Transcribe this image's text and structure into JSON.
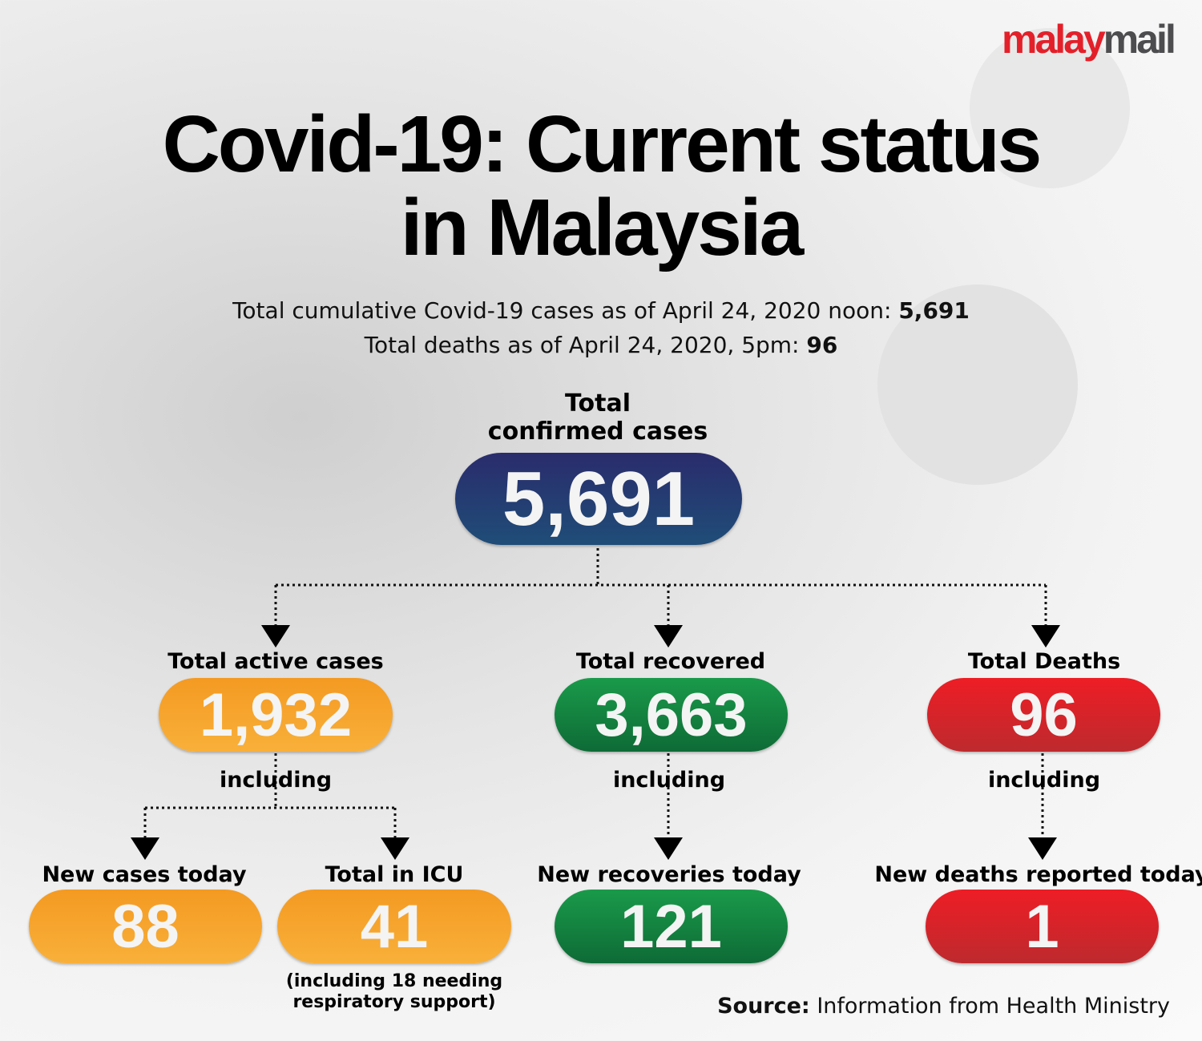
{
  "logo": {
    "part1": "malay",
    "part2": "mail"
  },
  "title": {
    "line1": "Covid-19: Current status",
    "line2": "in Malaysia"
  },
  "summary": {
    "cases_text": "Total cumulative Covid-19 cases as of April 24, 2020 noon: ",
    "cases_value": "5,691",
    "deaths_text": "Total deaths as of April 24, 2020, 5pm: ",
    "deaths_value": "96"
  },
  "total": {
    "label_line1": "Total",
    "label_line2": "confirmed cases",
    "value": "5,691"
  },
  "active": {
    "label": "Total active cases",
    "value": "1,932",
    "including": "including"
  },
  "recovered": {
    "label": "Total recovered",
    "value": "3,663",
    "including": "including"
  },
  "deaths": {
    "label": "Total Deaths",
    "value": "96",
    "including": "including"
  },
  "new_cases": {
    "label": "New cases today",
    "value": "88"
  },
  "icu": {
    "label": "Total in ICU",
    "value": "41",
    "note_line1": "(including 18 needing",
    "note_line2": "respiratory support)"
  },
  "new_recoveries": {
    "label": "New recoveries today",
    "value": "121"
  },
  "new_deaths": {
    "label": "New deaths reported today",
    "value": "1"
  },
  "source": {
    "label": "Source:",
    "text": " Information from Health Ministry"
  },
  "colors": {
    "navy": "#2a2c6c",
    "orange": "#f5a02a",
    "green": "#148043",
    "red": "#e3202a",
    "logo_red": "#e3202a",
    "logo_grey": "#4d4d4f"
  }
}
